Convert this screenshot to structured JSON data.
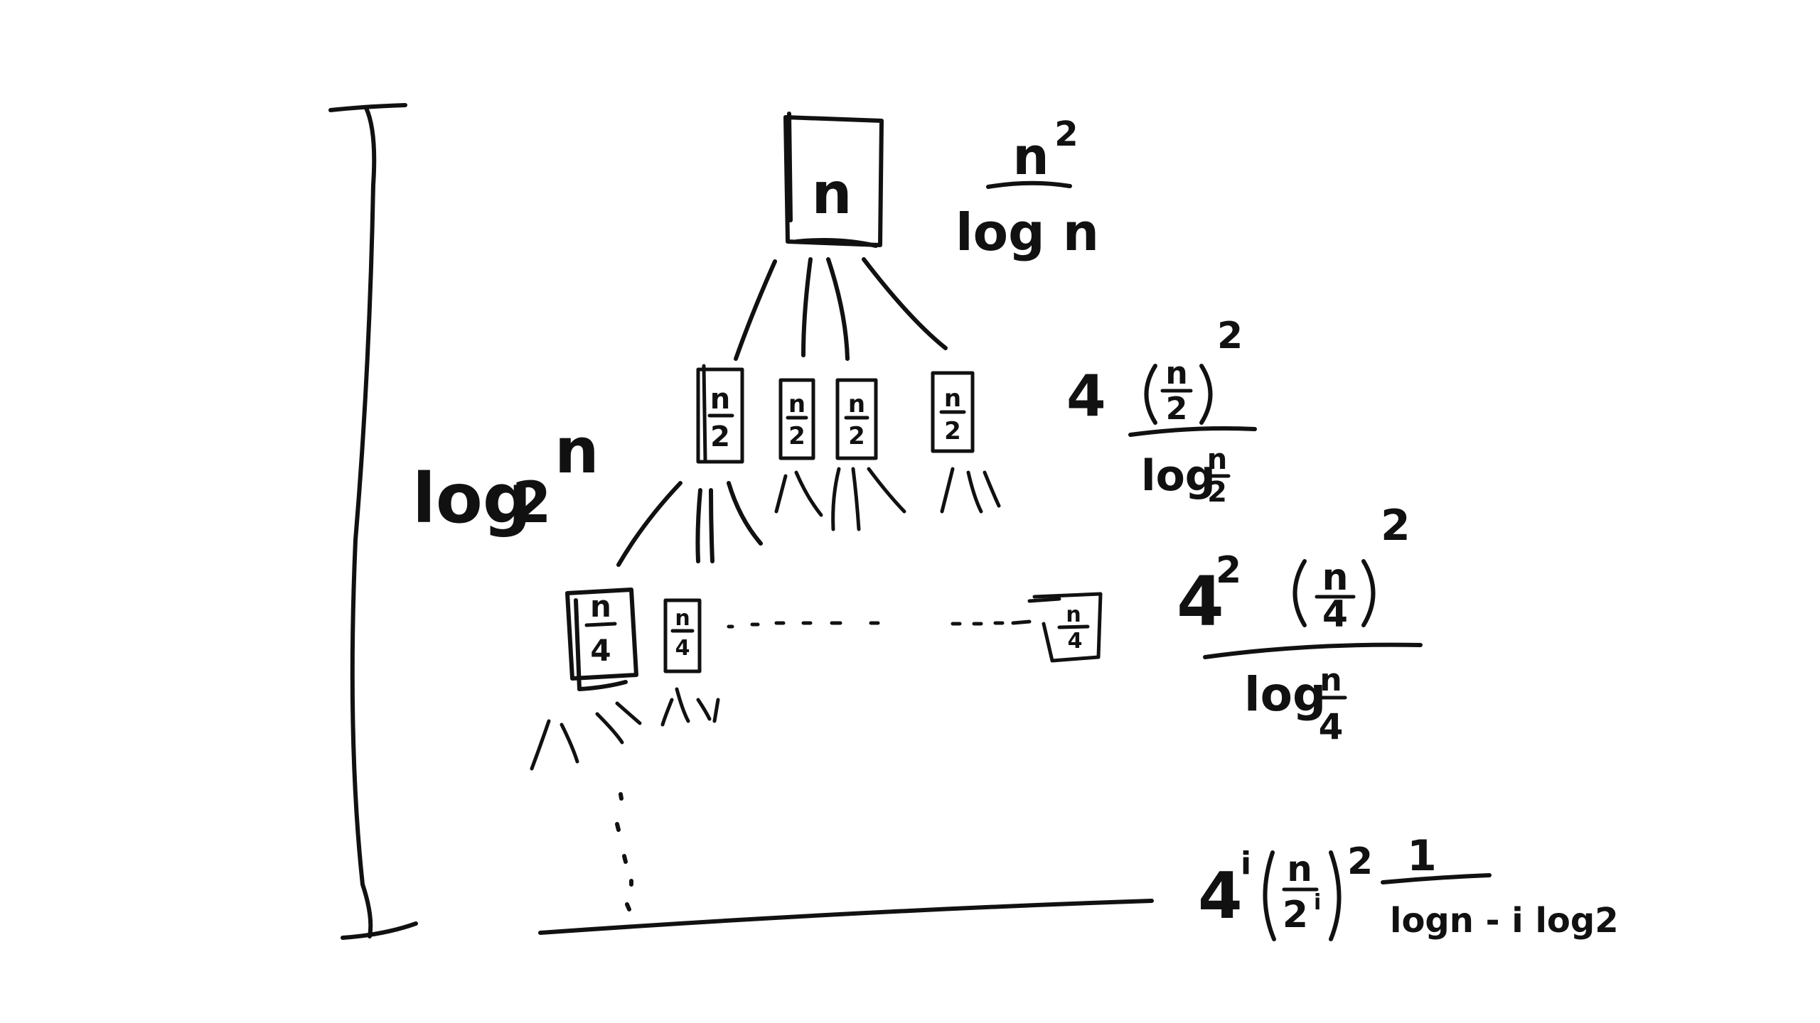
{
  "colors": {
    "ink": "#111111",
    "background": "#ffffff"
  },
  "depth_label": {
    "base": "log",
    "sub": "2",
    "arg": "n"
  },
  "root": {
    "node": "n",
    "cost": {
      "num": "n",
      "num_exp": "2",
      "den": "log n"
    }
  },
  "level1": {
    "nodes": [
      {
        "num": "n",
        "den": "2"
      },
      {
        "num": "n",
        "den": "2"
      },
      {
        "num": "n",
        "den": "2"
      },
      {
        "num": "n",
        "den": "2"
      }
    ],
    "cost": {
      "coef": "4",
      "inner_num": "n",
      "inner_den": "2",
      "exp": "2",
      "den_log": "log",
      "den_num": "n",
      "den_den": "2"
    }
  },
  "level2": {
    "nodes": [
      {
        "num": "n",
        "den": "4"
      },
      {
        "num": "n",
        "den": "4"
      },
      {
        "num": "n",
        "den": "4"
      }
    ],
    "cost": {
      "coef": "4",
      "coef_exp": "2",
      "inner_num": "n",
      "inner_den": "4",
      "exp": "2",
      "den_log": "log",
      "den_num": "n",
      "den_den": "4"
    }
  },
  "level_i": {
    "cost": {
      "coef": "4",
      "coef_exp": "i",
      "inner_num": "n",
      "inner_den": "2",
      "inner_den_exp": "i",
      "exp": "2",
      "frac_num": "1",
      "frac_den": "logn - i log2"
    }
  }
}
